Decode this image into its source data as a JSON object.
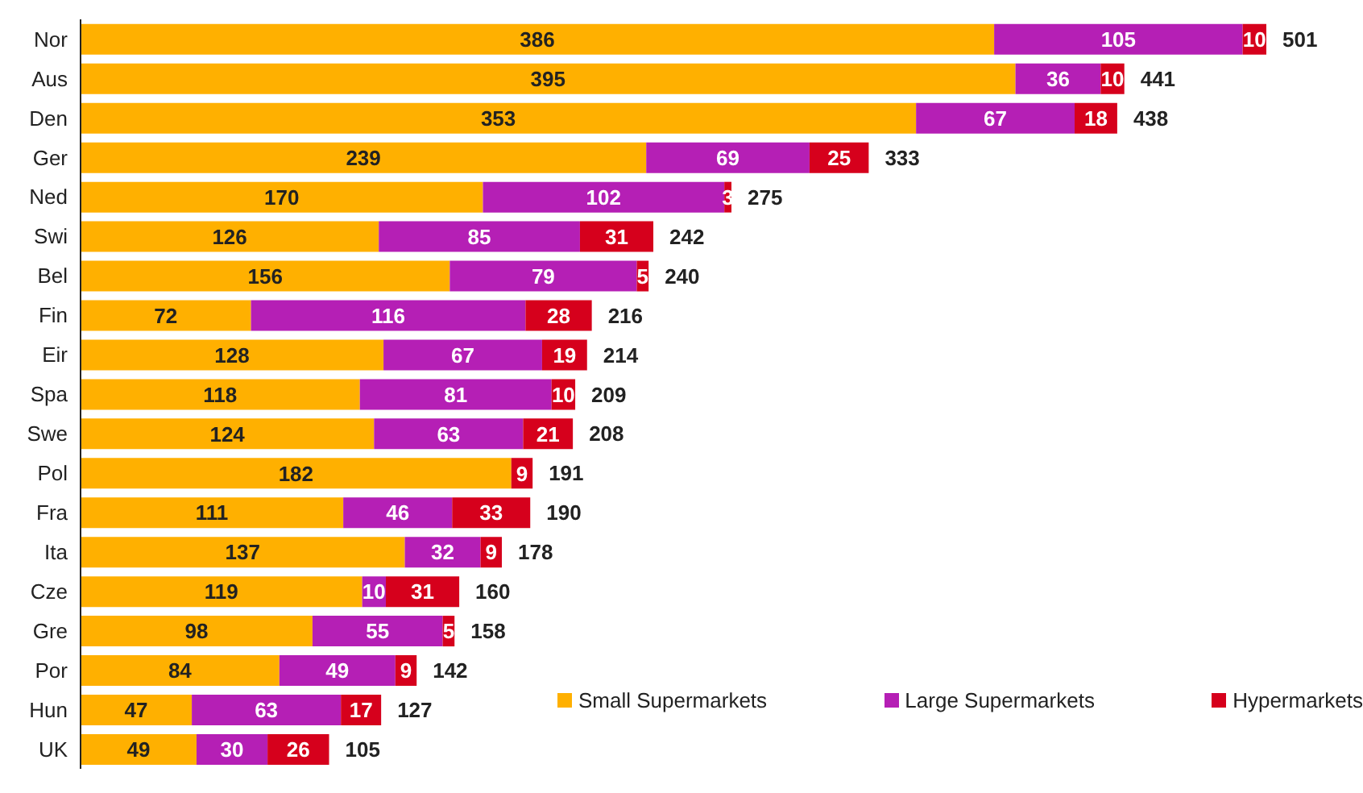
{
  "chart_data": {
    "type": "bar",
    "orientation": "horizontal",
    "stacked": true,
    "data_labels": true,
    "legend": "bottom right",
    "categories": [
      "Nor",
      "Aus",
      "Den",
      "Ger",
      "Ned",
      "Swi",
      "Bel",
      "Fin",
      "Eir",
      "Spa",
      "Swe",
      "Pol",
      "Fra",
      "Ita",
      "Cze",
      "Gre",
      "Por",
      "Hun",
      "UK"
    ],
    "series": [
      {
        "name": "Small Supermarkets",
        "color": "#ffb000",
        "values": [
          386,
          395,
          353,
          239,
          170,
          126,
          156,
          72,
          128,
          118,
          124,
          182,
          111,
          137,
          119,
          98,
          84,
          47,
          49
        ]
      },
      {
        "name": "Large Supermarkets",
        "color": "#b51fb5",
        "values": [
          105,
          36,
          67,
          69,
          102,
          85,
          79,
          116,
          67,
          81,
          63,
          null,
          46,
          32,
          10,
          55,
          49,
          63,
          30
        ]
      },
      {
        "name": "Hypermarkets",
        "color": "#d6001c",
        "values": [
          10,
          10,
          18,
          25,
          3,
          31,
          5,
          28,
          19,
          10,
          21,
          9,
          33,
          9,
          31,
          5,
          9,
          17,
          26
        ]
      }
    ],
    "totals": [
      "501",
      "441",
      "438",
      "333",
      "275",
      "242",
      "240",
      "216",
      "214",
      "209",
      "208",
      "191",
      "190",
      "178",
      "160",
      "158",
      "142",
      "127",
      "105"
    ]
  }
}
